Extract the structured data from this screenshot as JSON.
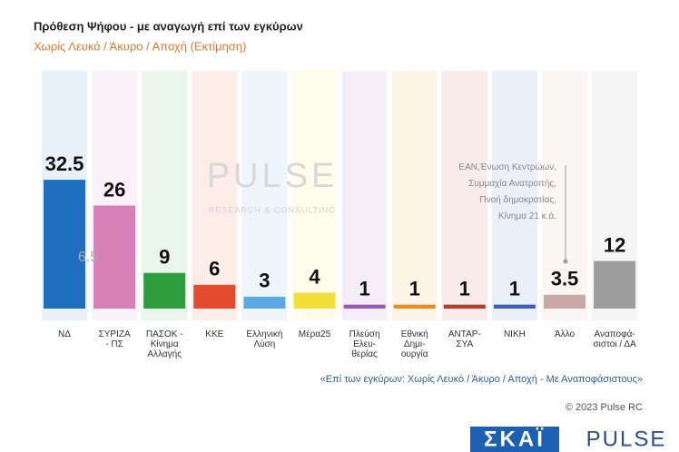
{
  "chart_data": {
    "type": "bar",
    "title": "Πρόθεση Ψήφου - με αναγωγή επί των εγκύρων",
    "subtitle": "Χωρίς Λευκό / Άκυρο / Αποχή  (Εκτίμηση)",
    "categories": [
      "ΝΔ",
      "ΣΥΡΙΖΑ\n- ΠΣ",
      "ΠΑΣΟΚ -\nΚίνημα\nΑλλαγής",
      "ΚΚΕ",
      "Ελληνική\nΛύση",
      "Μέρα25",
      "Πλεύση\nΕλευ-\nθερίας",
      "Εθνική\nΔημι-\nουργία",
      "ΑΝΤΑΡ-\nΣΥΑ",
      "ΝΙΚΗ",
      "Άλλο",
      "Αναποφά-\nσιστοι / ΔΑ"
    ],
    "values": [
      32.5,
      26,
      9,
      6,
      3,
      4,
      1,
      1,
      1,
      1,
      3.5,
      12
    ],
    "colors": [
      "#1f6fc1",
      "#d780b8",
      "#2e9e3f",
      "#e24b2c",
      "#5aa9e6",
      "#f2df3a",
      "#9b59b6",
      "#e8901e",
      "#c0392b",
      "#3b5fc0",
      "#c9aaa6",
      "#9e9e9e"
    ],
    "ylim": [
      0,
      60
    ],
    "annotations": [
      "6.5",
      "ΕΑΝ,Ένωση Κεντρώων,\nΣυμμαχία Ανατροπής,\nΠνοή δημοκρατίας,\nΚίνημα 21   κ.ά."
    ],
    "watermark": [
      "PULSE",
      "RESEARCH & CONSULTING"
    ],
    "footnote": "«Επί των εγκύρων:  Χωρίς Λευκό / Άκυρο / Αποχή - Με Αναποφάσιστους»",
    "copyright": "© 2023 Pulse RC",
    "logos": [
      "ΣΚΑΪ",
      "PULSE"
    ]
  }
}
